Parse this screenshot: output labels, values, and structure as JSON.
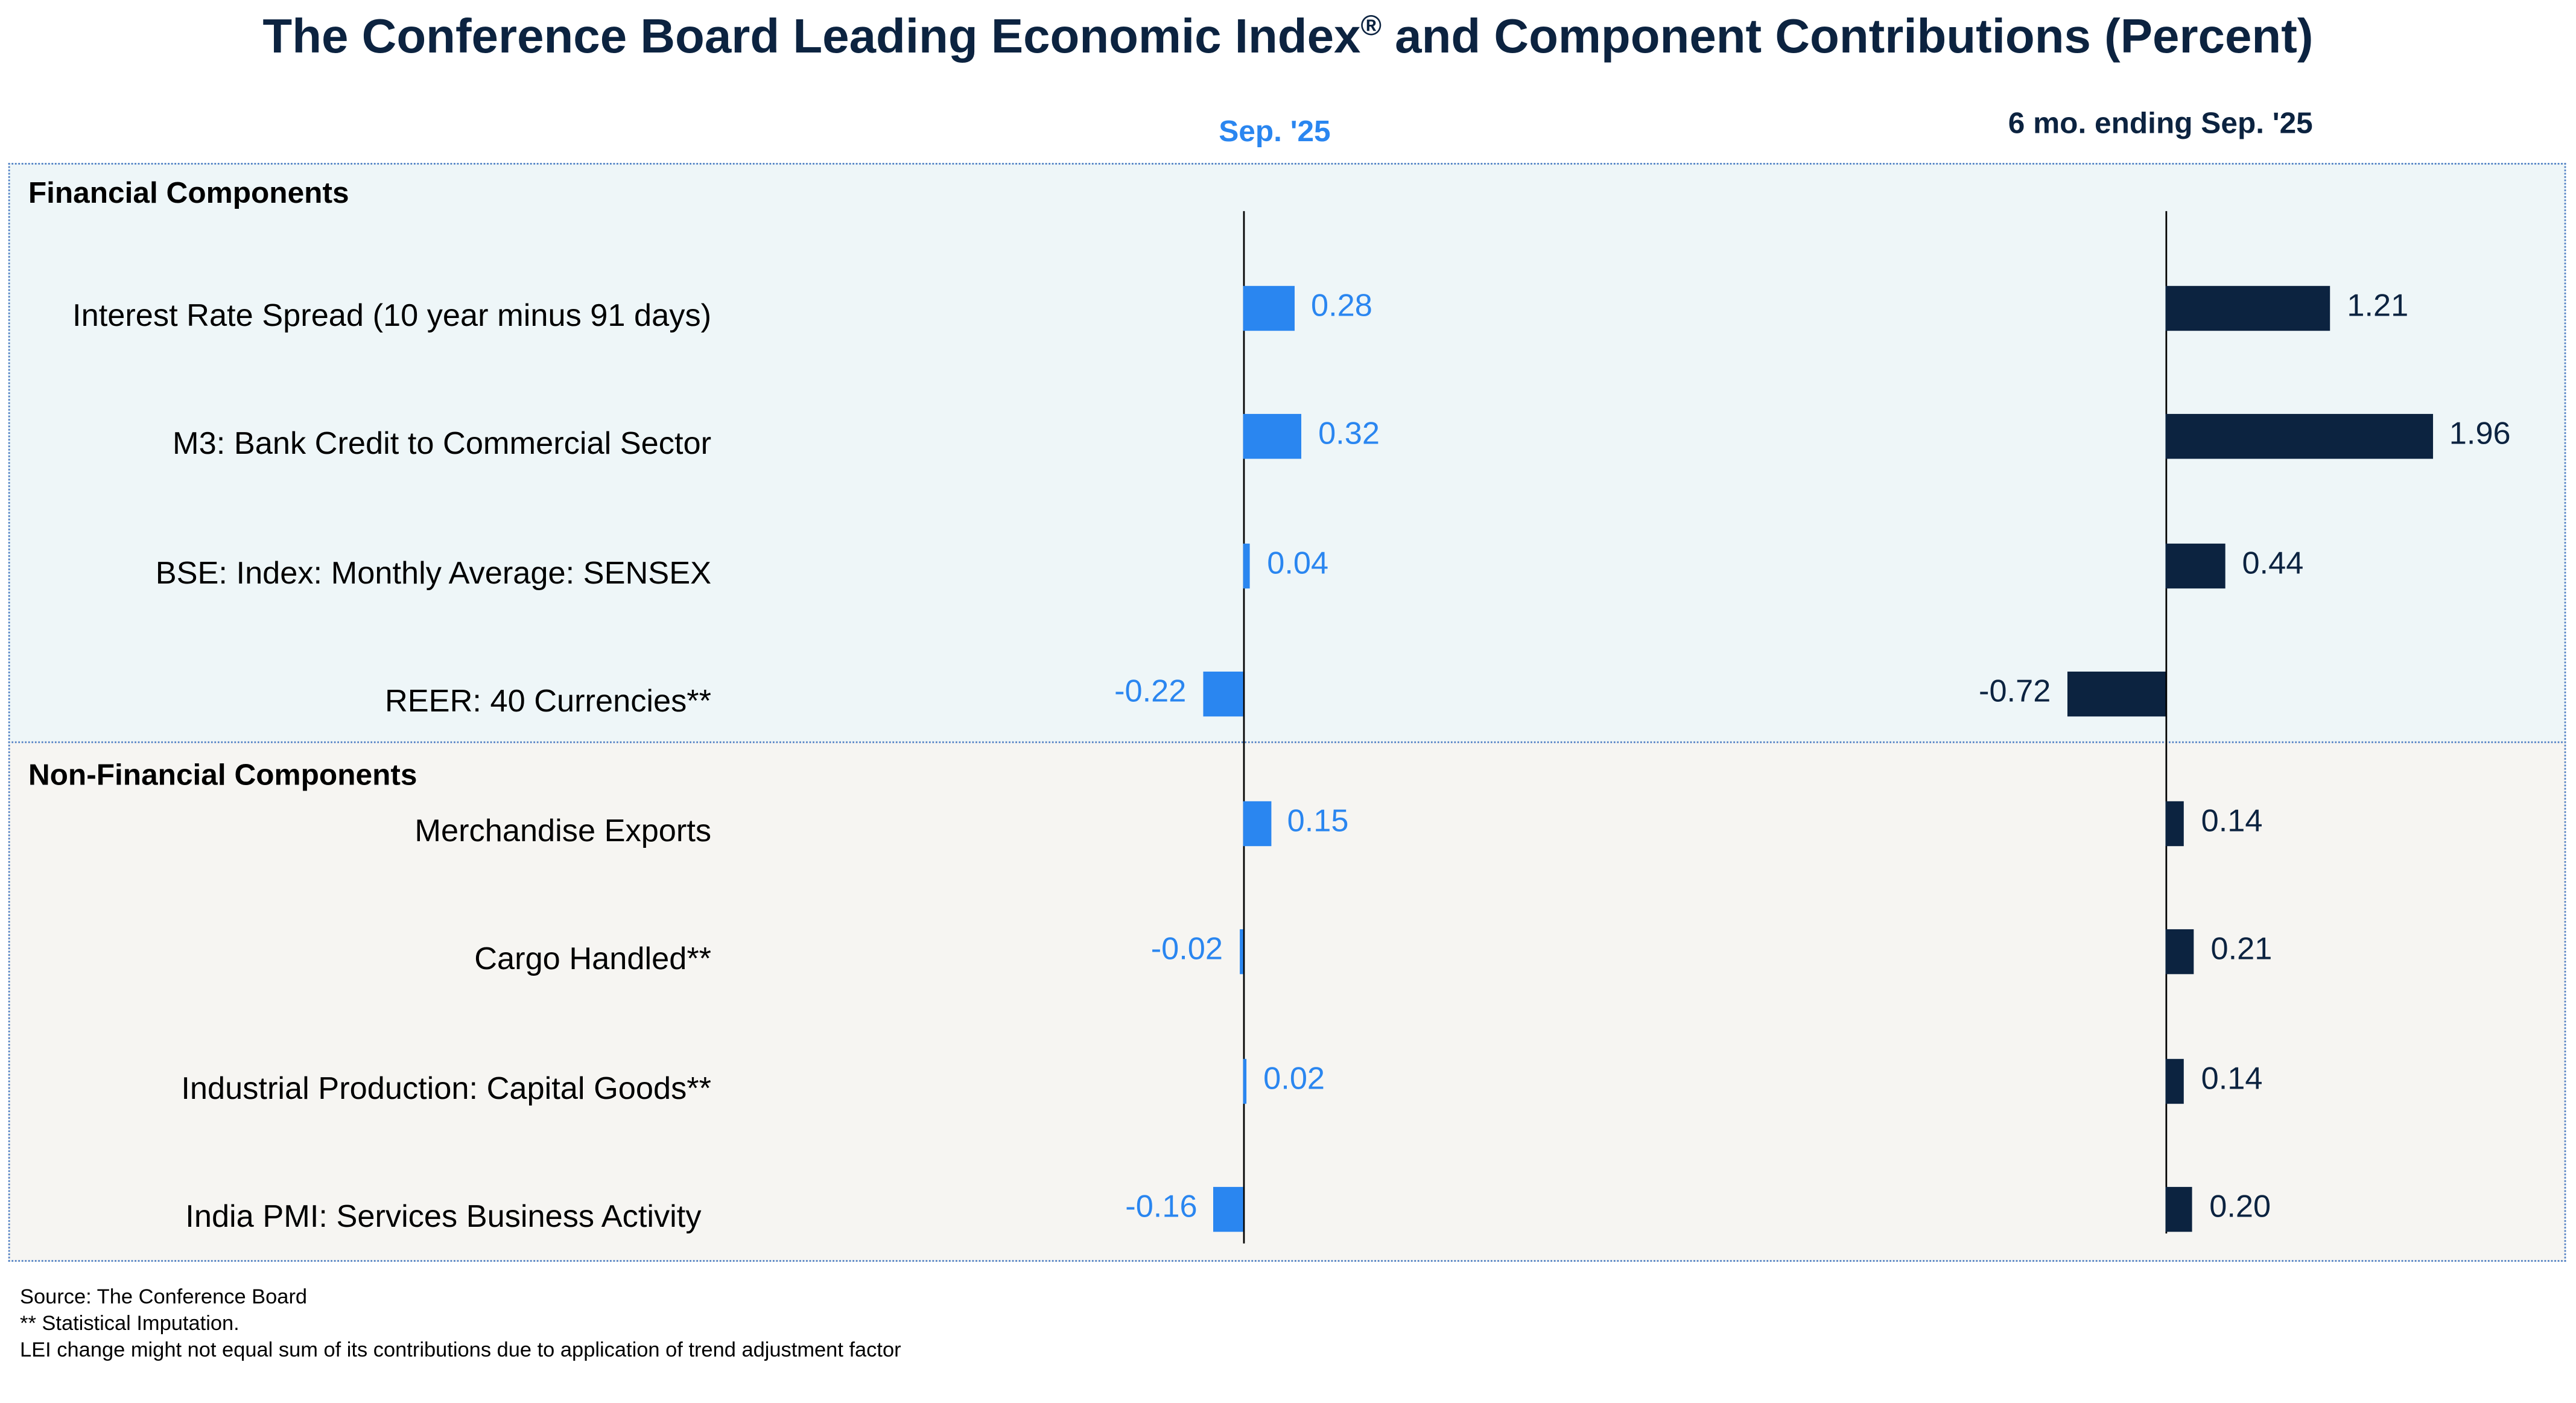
{
  "chart_data": {
    "type": "bar",
    "orientation": "horizontal",
    "title": "The Conference Board Leading Economic Index",
    "title_mark": "®",
    "title_suffix": " and Component Contributions (Percent)",
    "groups": [
      {
        "name": "Financial Components",
        "categories": [
          "Interest Rate Spread (10 year minus 91 days)",
          "M3: Bank Credit to Commercial Sector",
          "BSE: Index: Monthly Average: SENSEX",
          "REER: 40 Currencies**"
        ]
      },
      {
        "name": "Non-Financial Components",
        "categories": [
          "Merchandise Exports",
          "Cargo Handled**",
          "Industrial Production: Capital Goods**",
          "India PMI: Services Business Activity"
        ]
      }
    ],
    "series": [
      {
        "name": "Sep. '25",
        "color": "#2a86f0",
        "values": [
          0.28,
          0.32,
          0.04,
          -0.22,
          0.15,
          -0.02,
          0.02,
          -0.16
        ],
        "labels": [
          "0.28",
          "0.32",
          "0.04",
          "-0.22",
          "0.15",
          "-0.02",
          "0.02",
          "-0.16"
        ]
      },
      {
        "name": "6 mo. ending Sep. '25",
        "color": "#0c2340",
        "values": [
          1.21,
          1.96,
          0.44,
          -0.72,
          0.14,
          0.21,
          0.14,
          0.2
        ],
        "labels": [
          "1.21",
          "1.96",
          "0.44",
          "-0.72",
          "0.14",
          "0.21",
          "0.14",
          "0.20"
        ]
      }
    ]
  },
  "footnotes": [
    "Source: The Conference Board",
    "**  Statistical Imputation.",
    "LEI change might not equal sum of its contributions due to application of trend adjustment factor"
  ]
}
